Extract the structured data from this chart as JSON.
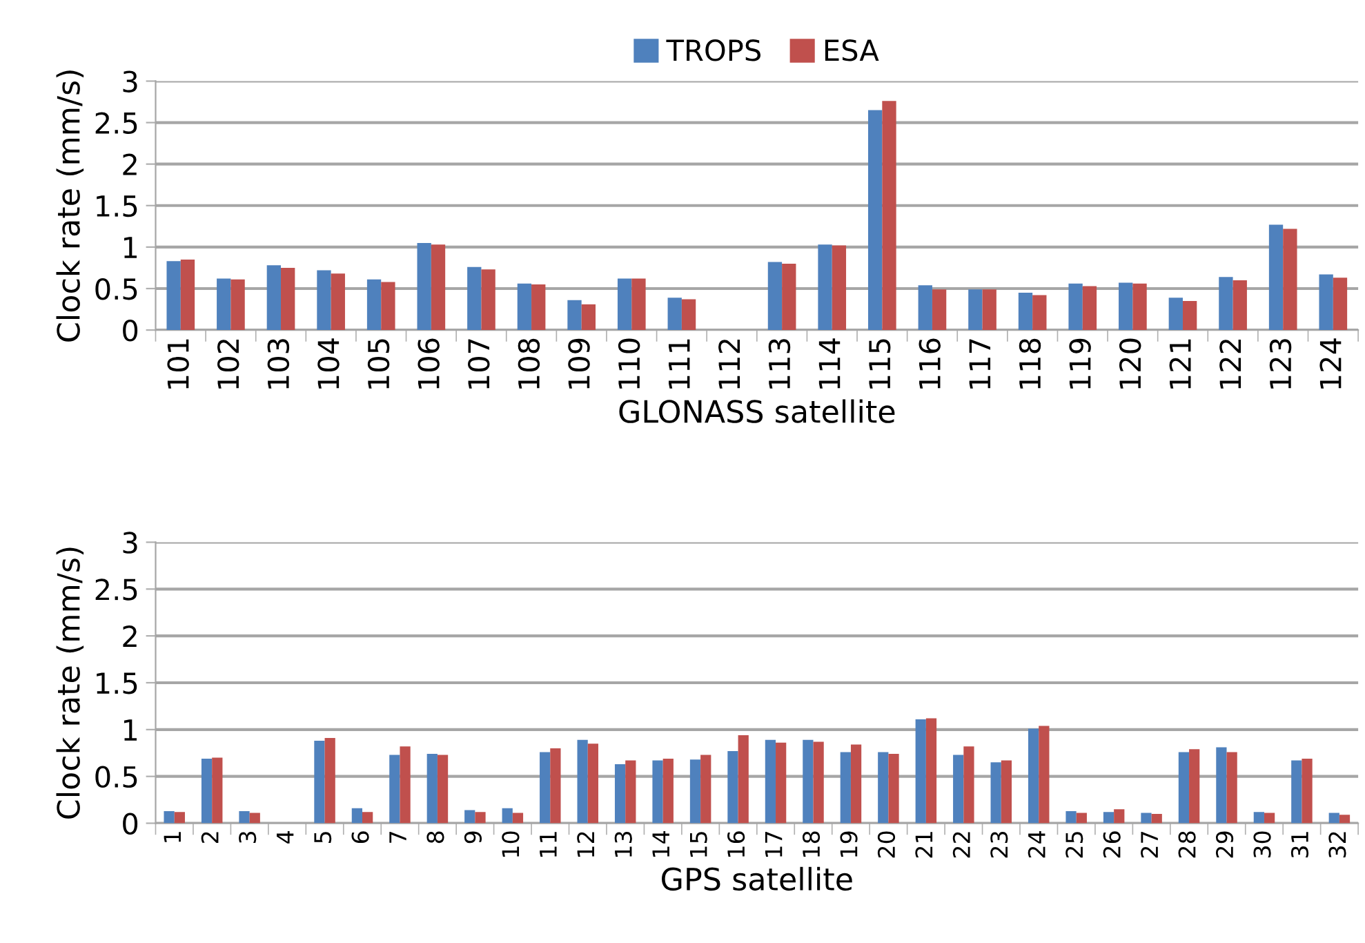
{
  "chart_data": [
    {
      "type": "bar",
      "xlabel": "GLONASS satellite",
      "ylabel": "Clock rate (mm/s)",
      "categories": [
        "101",
        "102",
        "103",
        "104",
        "105",
        "106",
        "107",
        "108",
        "109",
        "110",
        "111",
        "112",
        "113",
        "114",
        "115",
        "116",
        "117",
        "118",
        "119",
        "120",
        "121",
        "122",
        "123",
        "124"
      ],
      "series": [
        {
          "name": "TROPS",
          "color": "#4f81bd",
          "values": [
            0.83,
            0.62,
            0.78,
            0.72,
            0.61,
            1.05,
            0.76,
            0.56,
            0.36,
            0.62,
            0.39,
            null,
            0.82,
            1.03,
            2.65,
            0.54,
            0.49,
            0.45,
            0.56,
            0.57,
            0.39,
            0.64,
            1.27,
            0.67
          ]
        },
        {
          "name": "ESA",
          "color": "#c0504d",
          "values": [
            0.85,
            0.61,
            0.75,
            0.68,
            0.58,
            1.03,
            0.73,
            0.55,
            0.31,
            0.62,
            0.37,
            null,
            0.8,
            1.02,
            2.76,
            0.49,
            0.49,
            0.42,
            0.53,
            0.56,
            0.35,
            0.6,
            1.22,
            0.63
          ]
        }
      ],
      "ylim": [
        0,
        3
      ],
      "yticks": [
        0,
        0.5,
        1,
        1.5,
        2,
        2.5,
        3
      ],
      "grid": "y",
      "legend": "top"
    },
    {
      "type": "bar",
      "xlabel": "GPS satellite",
      "ylabel": "Clock rate (mm/s)",
      "categories": [
        "1",
        "2",
        "3",
        "4",
        "5",
        "6",
        "7",
        "8",
        "9",
        "10",
        "11",
        "12",
        "13",
        "14",
        "15",
        "16",
        "17",
        "18",
        "19",
        "20",
        "21",
        "22",
        "23",
        "24",
        "25",
        "26",
        "27",
        "28",
        "29",
        "30",
        "31",
        "32"
      ],
      "series": [
        {
          "color": "#4f81bd",
          "values": [
            0.13,
            0.69,
            0.13,
            null,
            0.88,
            0.16,
            0.73,
            0.74,
            0.14,
            0.16,
            0.76,
            0.89,
            0.63,
            0.67,
            0.68,
            0.77,
            0.89,
            0.89,
            0.76,
            0.76,
            1.11,
            0.73,
            0.65,
            1.01,
            0.13,
            0.12,
            0.11,
            0.76,
            0.81,
            0.12,
            0.67,
            0.11
          ]
        },
        {
          "color": "#c0504d",
          "values": [
            0.12,
            0.7,
            0.11,
            null,
            0.91,
            0.12,
            0.82,
            0.73,
            0.12,
            0.11,
            0.8,
            0.85,
            0.67,
            0.69,
            0.73,
            0.94,
            0.86,
            0.87,
            0.84,
            0.74,
            1.12,
            0.82,
            0.67,
            1.04,
            0.11,
            0.15,
            0.1,
            0.79,
            0.76,
            0.11,
            0.69,
            0.09
          ]
        }
      ],
      "ylim": [
        0,
        3
      ],
      "yticks": [
        0,
        0.5,
        1,
        1.5,
        2,
        2.5,
        3
      ],
      "grid": "y"
    }
  ]
}
